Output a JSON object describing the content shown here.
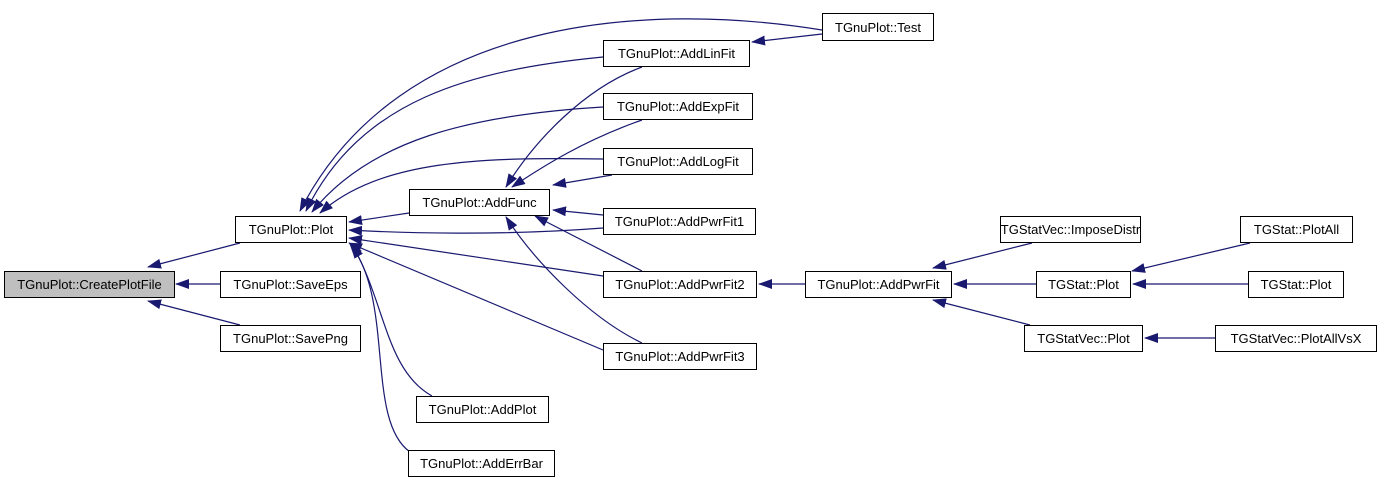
{
  "colors": {
    "edge": "#191970",
    "root_fill": "#bfbfbf",
    "node_fill": "#ffffff"
  },
  "nodes": {
    "createplotfile": "TGnuPlot::CreatePlotFile",
    "plot": "TGnuPlot::Plot",
    "saveeps": "TGnuPlot::SaveEps",
    "savepng": "TGnuPlot::SavePng",
    "addfunc": "TGnuPlot::AddFunc",
    "addlinfit": "TGnuPlot::AddLinFit",
    "addexpfit": "TGnuPlot::AddExpFit",
    "addlogfit": "TGnuPlot::AddLogFit",
    "addpwrfit1": "TGnuPlot::AddPwrFit1",
    "addpwrfit2": "TGnuPlot::AddPwrFit2",
    "addpwrfit3": "TGnuPlot::AddPwrFit3",
    "addplot": "TGnuPlot::AddPlot",
    "adderrbar": "TGnuPlot::AddErrBar",
    "test": "TGnuPlot::Test",
    "addpwrfit": "TGnuPlot::AddPwrFit",
    "imposedistr": "TGStatVec::ImposeDistr",
    "tgstat_plot": "TGStat::Plot",
    "tgstatvec_plot": "TGStatVec::Plot",
    "plotall": "TGStat::PlotAll",
    "tgstat_plot2": "TGStat::Plot",
    "plotallvsx": "TGStatVec::PlotAllVsX"
  },
  "edges": [
    [
      "plot",
      "createplotfile"
    ],
    [
      "saveeps",
      "createplotfile"
    ],
    [
      "savepng",
      "createplotfile"
    ],
    [
      "test",
      "plot"
    ],
    [
      "addlinfit",
      "plot"
    ],
    [
      "addexpfit",
      "plot"
    ],
    [
      "addlogfit",
      "plot"
    ],
    [
      "addfunc",
      "plot"
    ],
    [
      "addpwrfit1",
      "plot"
    ],
    [
      "addpwrfit2",
      "plot"
    ],
    [
      "addpwrfit3",
      "plot"
    ],
    [
      "addplot",
      "plot"
    ],
    [
      "adderrbar",
      "plot"
    ],
    [
      "addlinfit",
      "addfunc"
    ],
    [
      "addexpfit",
      "addfunc"
    ],
    [
      "addlogfit",
      "addfunc"
    ],
    [
      "addpwrfit1",
      "addfunc"
    ],
    [
      "addpwrfit2",
      "addfunc"
    ],
    [
      "addpwrfit3",
      "addfunc"
    ],
    [
      "test",
      "addlinfit"
    ],
    [
      "addpwrfit",
      "addpwrfit2"
    ],
    [
      "imposedistr",
      "addpwrfit"
    ],
    [
      "tgstat_plot",
      "addpwrfit"
    ],
    [
      "tgstatvec_plot",
      "addpwrfit"
    ],
    [
      "plotall",
      "tgstat_plot"
    ],
    [
      "tgstat_plot2",
      "tgstat_plot"
    ],
    [
      "plotallvsx",
      "tgstatvec_plot"
    ]
  ]
}
